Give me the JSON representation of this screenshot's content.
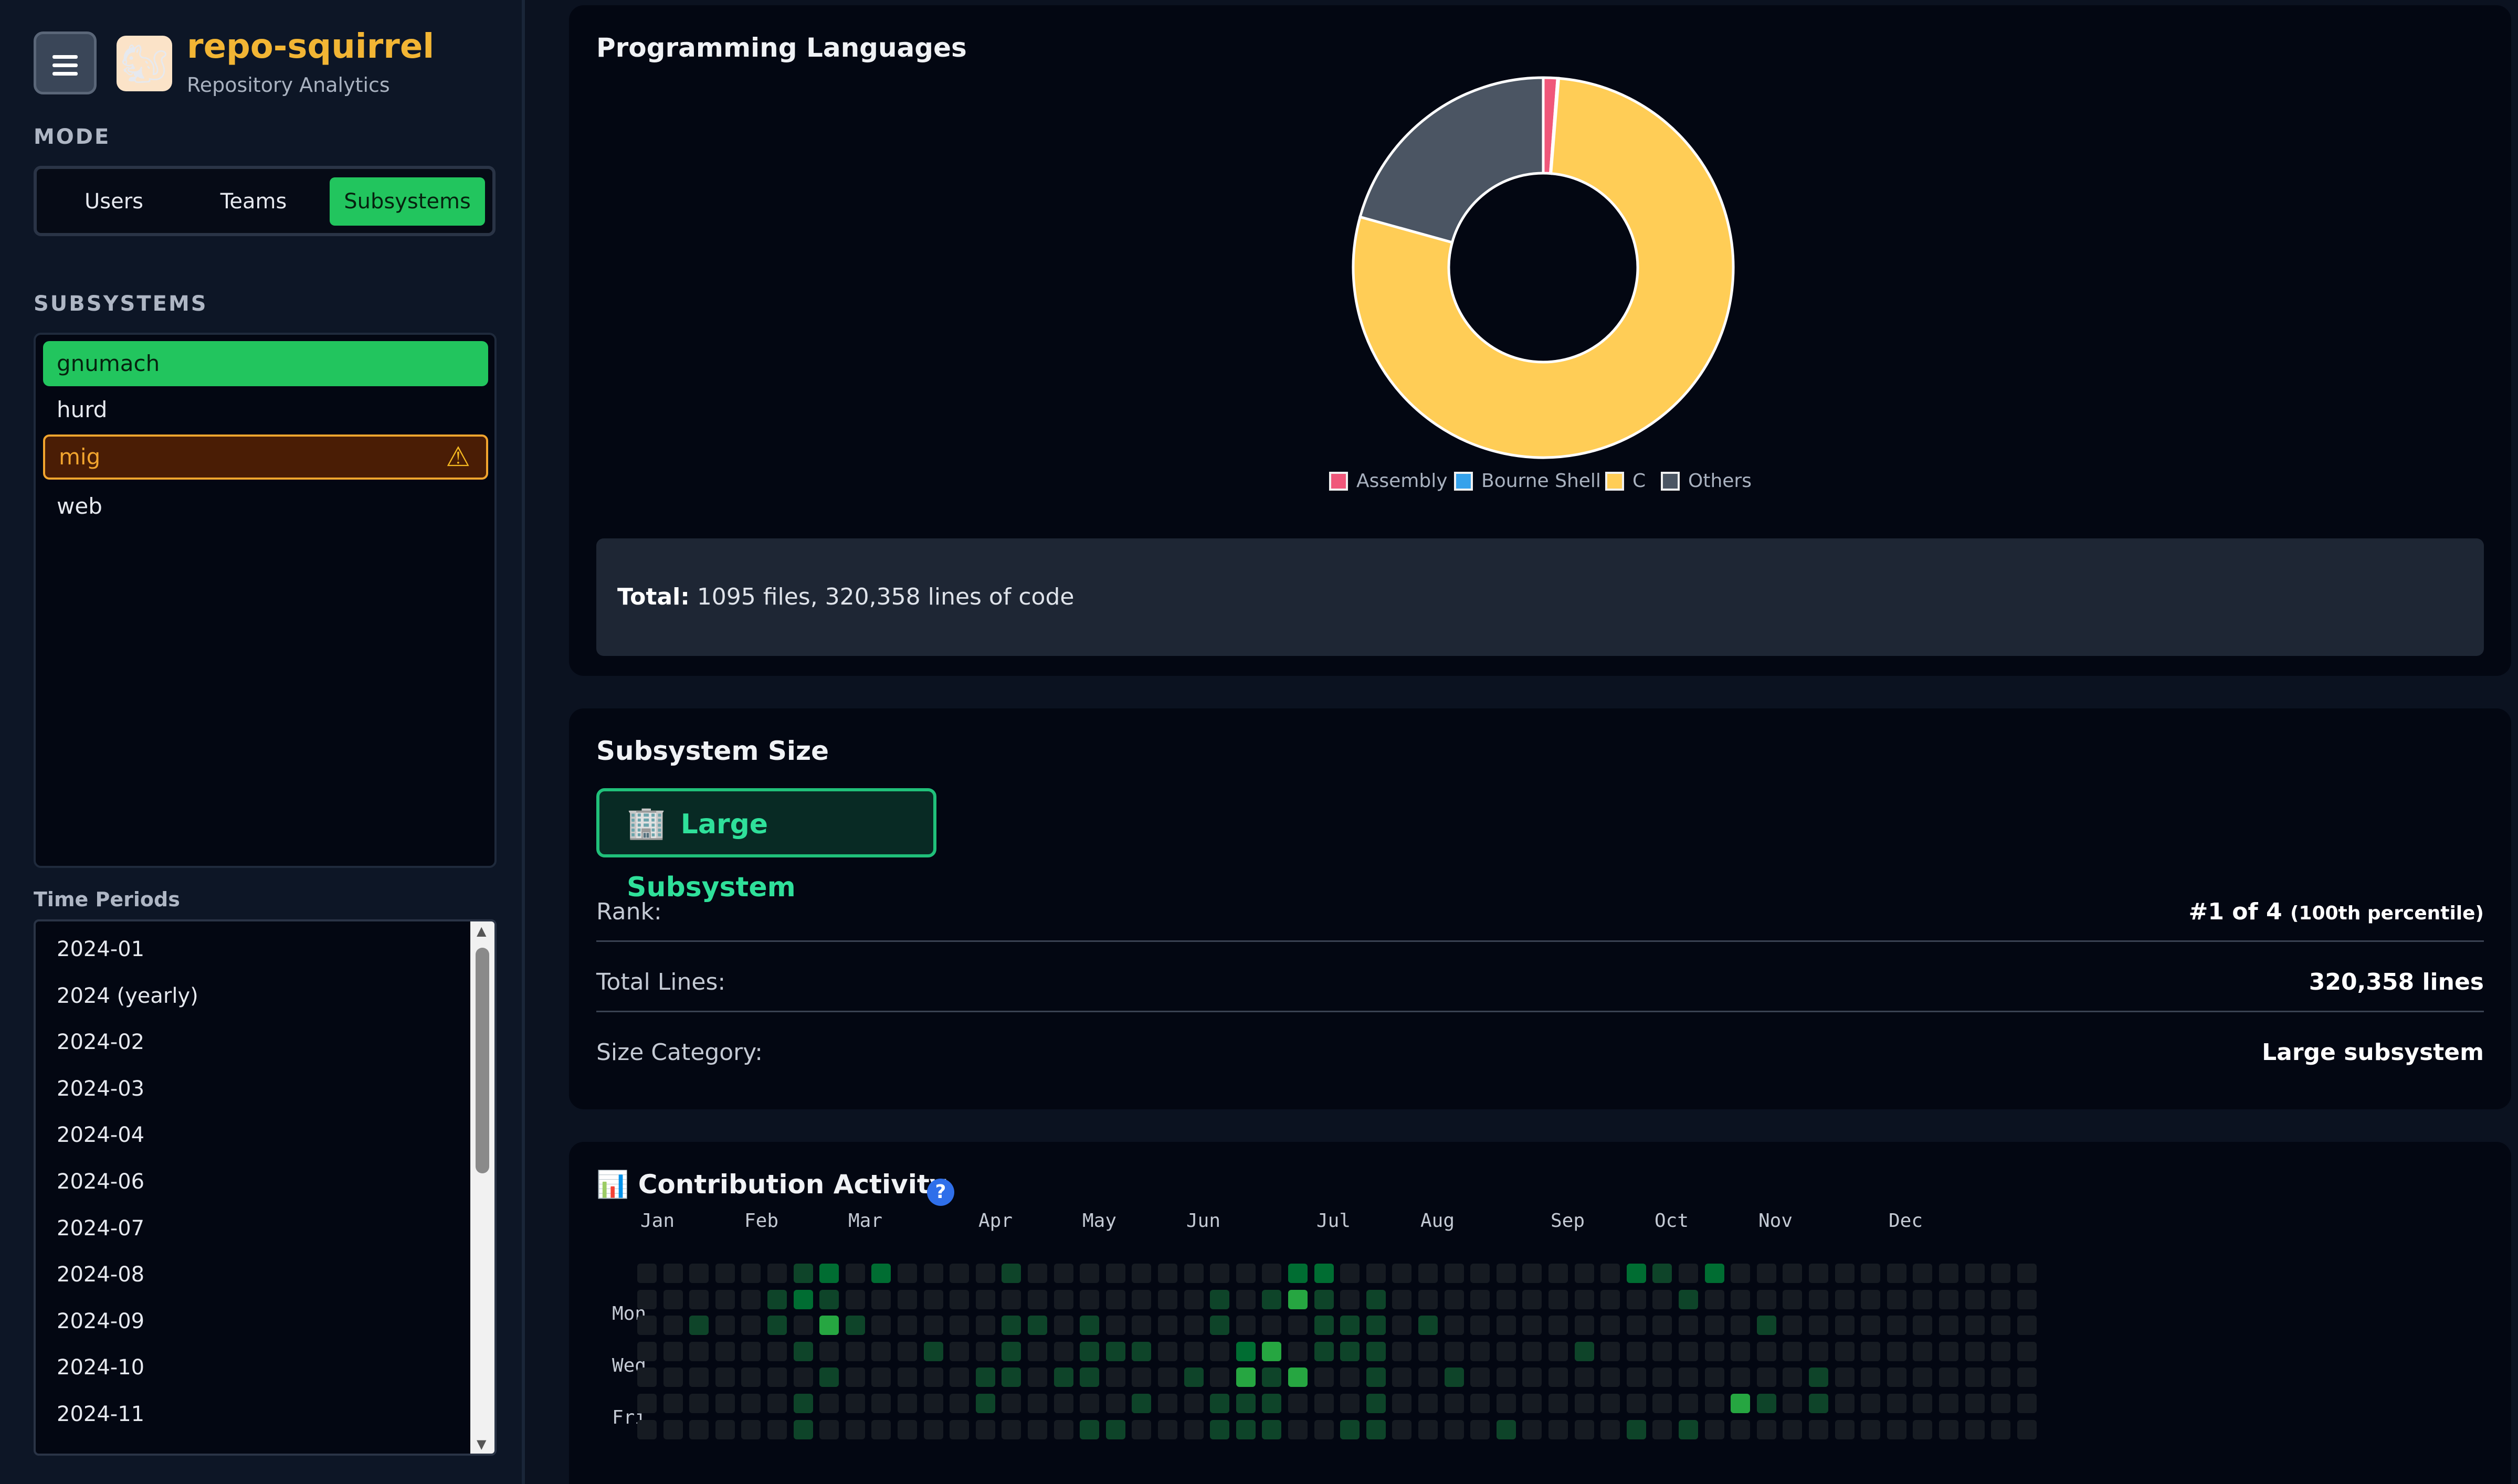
{
  "app": {
    "title": "repo-squirrel",
    "subtitle": "Repository Analytics"
  },
  "mode": {
    "label": "MODE",
    "options": [
      "Users",
      "Teams",
      "Subsystems"
    ],
    "active": "Subsystems"
  },
  "subsystems": {
    "label": "SUBSYSTEMS",
    "items": [
      "gnumach",
      "hurd",
      "mig",
      "web"
    ],
    "selected": "gnumach",
    "warning": "mig"
  },
  "time_periods": {
    "label": "Time Periods",
    "items": [
      "2024-01",
      "2024 (yearly)",
      "2024-02",
      "2024-03",
      "2024-04",
      "2024-06",
      "2024-07",
      "2024-08",
      "2024-09",
      "2024-10",
      "2024-11"
    ]
  },
  "languages": {
    "title": "Programming Languages",
    "total_label": "Total:",
    "total_text": "1095 files, 320,358 lines of code",
    "chart_data": {
      "type": "pie",
      "legend_position": "bottom",
      "categories": [
        "Assembly",
        "Bourne Shell",
        "C",
        "Others"
      ],
      "values": [
        1.2,
        0.1,
        78.0,
        20.7
      ],
      "colors": [
        "#f0577a",
        "#36a2eb",
        "#ffcd56",
        "#4b5563"
      ]
    }
  },
  "size": {
    "title": "Subsystem Size",
    "badge_icon": "building-icon",
    "badge_text": "Large Subsystem",
    "rows": [
      {
        "label": "Rank:",
        "value": "#1 of 4",
        "note": "(100th percentile)"
      },
      {
        "label": "Total Lines:",
        "value": "320,358 lines",
        "note": ""
      },
      {
        "label": "Size Category:",
        "value": "Large subsystem",
        "note": ""
      }
    ]
  },
  "activity": {
    "title": "Contribution Activity",
    "title_icon": "bar-chart-icon",
    "help": "?",
    "months": [
      "Jan",
      "Feb",
      "Mar",
      "Apr",
      "May",
      "Jun",
      "Jul",
      "Aug",
      "Sep",
      "Oct",
      "Nov",
      "Dec"
    ],
    "days": [
      "Mon",
      "Wed",
      "Fri"
    ],
    "colors": [
      "#161b22",
      "#0e4429",
      "#006d32",
      "#26a641",
      "#39d353"
    ],
    "chart_data": {
      "type": "heatmap",
      "rows": 7,
      "columns": 54,
      "cells": [
        [
          0,
          6,
          1
        ],
        [
          0,
          7,
          2
        ],
        [
          0,
          9,
          2
        ],
        [
          0,
          14,
          1
        ],
        [
          0,
          25,
          2
        ],
        [
          0,
          26,
          2
        ],
        [
          0,
          38,
          2
        ],
        [
          0,
          39,
          1
        ],
        [
          0,
          41,
          2
        ],
        [
          1,
          5,
          1
        ],
        [
          1,
          6,
          2
        ],
        [
          1,
          7,
          1
        ],
        [
          1,
          22,
          1
        ],
        [
          1,
          24,
          1
        ],
        [
          1,
          25,
          3
        ],
        [
          1,
          26,
          1
        ],
        [
          1,
          28,
          1
        ],
        [
          1,
          40,
          1
        ],
        [
          2,
          2,
          1
        ],
        [
          2,
          5,
          1
        ],
        [
          2,
          7,
          3
        ],
        [
          2,
          8,
          1
        ],
        [
          2,
          14,
          1
        ],
        [
          2,
          15,
          1
        ],
        [
          2,
          17,
          1
        ],
        [
          2,
          22,
          1
        ],
        [
          2,
          26,
          1
        ],
        [
          2,
          27,
          1
        ],
        [
          2,
          28,
          1
        ],
        [
          2,
          30,
          1
        ],
        [
          2,
          43,
          1
        ],
        [
          3,
          6,
          1
        ],
        [
          3,
          11,
          1
        ],
        [
          3,
          14,
          1
        ],
        [
          3,
          17,
          1
        ],
        [
          3,
          18,
          1
        ],
        [
          3,
          19,
          1
        ],
        [
          3,
          23,
          2
        ],
        [
          3,
          24,
          3
        ],
        [
          3,
          26,
          1
        ],
        [
          3,
          27,
          1
        ],
        [
          3,
          28,
          1
        ],
        [
          3,
          36,
          1
        ],
        [
          4,
          7,
          1
        ],
        [
          4,
          13,
          1
        ],
        [
          4,
          14,
          1
        ],
        [
          4,
          16,
          1
        ],
        [
          4,
          17,
          1
        ],
        [
          4,
          21,
          1
        ],
        [
          4,
          23,
          3
        ],
        [
          4,
          24,
          1
        ],
        [
          4,
          25,
          3
        ],
        [
          4,
          28,
          1
        ],
        [
          4,
          31,
          1
        ],
        [
          4,
          45,
          1
        ],
        [
          5,
          6,
          1
        ],
        [
          5,
          13,
          1
        ],
        [
          5,
          19,
          1
        ],
        [
          5,
          22,
          1
        ],
        [
          5,
          23,
          1
        ],
        [
          5,
          24,
          1
        ],
        [
          5,
          28,
          1
        ],
        [
          5,
          42,
          3
        ],
        [
          5,
          43,
          1
        ],
        [
          5,
          45,
          1
        ],
        [
          6,
          6,
          1
        ],
        [
          6,
          17,
          1
        ],
        [
          6,
          18,
          1
        ],
        [
          6,
          22,
          1
        ],
        [
          6,
          23,
          1
        ],
        [
          6,
          24,
          1
        ],
        [
          6,
          27,
          1
        ],
        [
          6,
          28,
          1
        ],
        [
          6,
          33,
          1
        ],
        [
          6,
          38,
          1
        ],
        [
          6,
          40,
          1
        ]
      ]
    }
  }
}
